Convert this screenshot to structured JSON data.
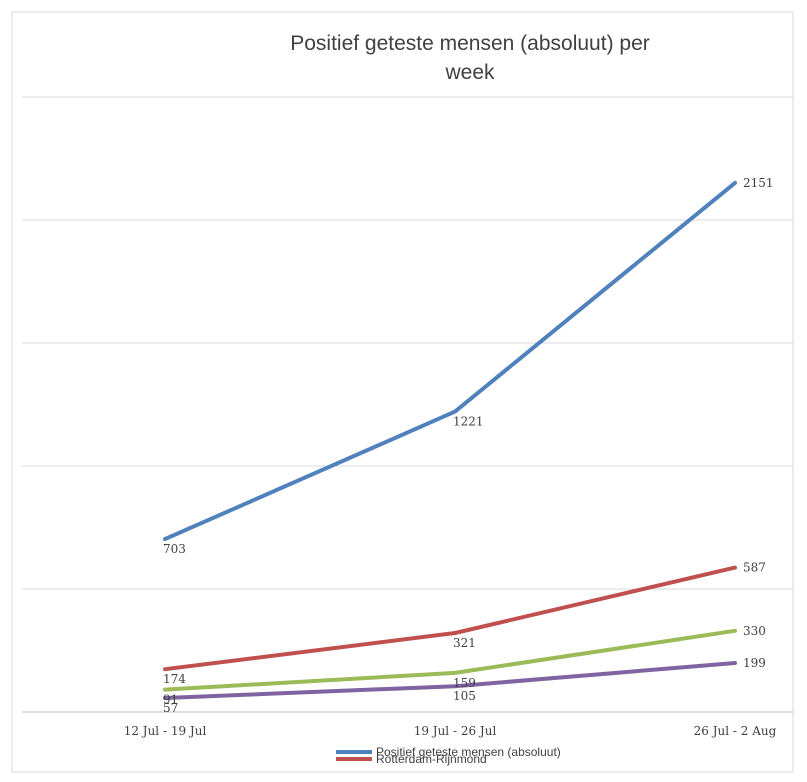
{
  "chart_data": {
    "type": "line",
    "title": "Positief geteste mensen (absoluut) per week",
    "title_lines": [
      "Positief geteste mensen (absoluut) per",
      "week"
    ],
    "categories": [
      "12 Jul - 19 Jul",
      "19 Jul - 26 Jul",
      "26 Jul - 2 Aug"
    ],
    "ylim": [
      0,
      2500
    ],
    "grid": true,
    "legend_position": "bottom",
    "series": [
      {
        "name": "Positief geteste mensen (absoluut)",
        "color": "#4f81bd",
        "values": [
          703,
          1221,
          2151
        ]
      },
      {
        "name": "Rotterdam-Rijnmond",
        "color": "#c0504d",
        "values": [
          174,
          321,
          587
        ]
      },
      {
        "color": "#9bbb59",
        "values": [
          91,
          159,
          330
        ]
      },
      {
        "color": "#8064a2",
        "values": [
          57,
          105,
          199
        ]
      }
    ]
  }
}
